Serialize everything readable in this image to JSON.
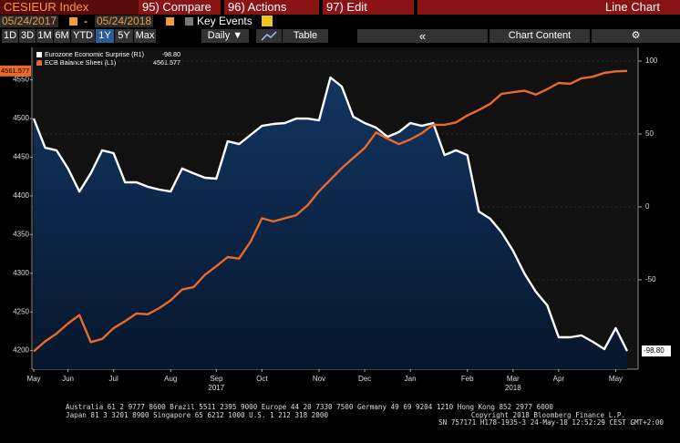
{
  "toolbar": {
    "ticker": "CESIEUR Index",
    "compare": "95) Compare",
    "actions": "96) Actions",
    "edit": "97) Edit",
    "view": "Line Chart",
    "start_date": "05/24/2017",
    "date_separator": "-",
    "end_date": "05/24/2018",
    "key_events": "Key Events",
    "periods": [
      "1D",
      "3D",
      "1M",
      "6M",
      "YTD",
      "1Y",
      "5Y",
      "Max"
    ],
    "selected_period": "1Y",
    "frequency": "Daily",
    "table": "Table",
    "collapse": "«",
    "chart_content": "Chart Content",
    "settings": "⚙"
  },
  "chart_data": {
    "type": "line",
    "categories": [
      "May",
      null,
      null,
      "Jun",
      null,
      null,
      null,
      "Jul",
      null,
      null,
      null,
      null,
      "Aug",
      null,
      null,
      null,
      "Sep",
      null,
      null,
      null,
      "Oct",
      null,
      null,
      null,
      null,
      "Nov",
      null,
      null,
      null,
      "Dec",
      null,
      null,
      null,
      "Jan",
      null,
      null,
      null,
      null,
      "Feb",
      null,
      null,
      null,
      "Mar",
      null,
      null,
      null,
      "Apr",
      null,
      null,
      null,
      null,
      "May",
      null
    ],
    "year_categories": [
      null,
      null,
      null,
      null,
      null,
      null,
      null,
      null,
      null,
      null,
      null,
      null,
      null,
      null,
      null,
      null,
      "2017",
      null,
      null,
      null,
      null,
      null,
      null,
      null,
      null,
      null,
      null,
      null,
      null,
      null,
      null,
      null,
      null,
      null,
      null,
      null,
      null,
      null,
      null,
      null,
      null,
      null,
      "2018",
      null,
      null,
      null,
      null,
      null,
      null,
      null,
      null,
      null,
      null
    ],
    "series": [
      {
        "name": "Eurozone Economic Surprise (R1)",
        "color": "#ffffff",
        "axis": "y2",
        "last_label": "-98.80",
        "values": [
          60.6,
          40.6,
          38.8,
          26.3,
          10.6,
          23.1,
          38.8,
          36.9,
          16.9,
          16.9,
          13.8,
          11.9,
          10.6,
          26.3,
          23.1,
          20,
          19.4,
          45,
          43.1,
          49.4,
          55.6,
          56.9,
          57.5,
          60.6,
          60.6,
          59.4,
          88.8,
          82.5,
          61.9,
          57.5,
          54.4,
          48.1,
          51.3,
          57.5,
          55.6,
          57.5,
          35.6,
          38.8,
          35.6,
          -3.1,
          -8.1,
          -17.5,
          -30,
          -45.6,
          -58.1,
          -67.5,
          -89.4,
          -89.4,
          -88.1,
          -92.5,
          -97.5,
          -83.1,
          -98.8
        ]
      },
      {
        "name": "ECB Balance Sheet (L1)",
        "color": "#ea6a2a",
        "axis": "y",
        "last_label": "4561.577",
        "values": [
          4199,
          4212,
          4222,
          4235,
          4246,
          4211,
          4215,
          4229,
          4238,
          4248,
          4247,
          4255,
          4265,
          4279,
          4282,
          4298,
          4309,
          4321,
          4319,
          4341,
          4371,
          4367,
          4371,
          4375,
          4388,
          4406,
          4421,
          4436,
          4449,
          4462,
          4482,
          4474,
          4467,
          4473,
          4481,
          4492,
          4492,
          4495,
          4504,
          4511,
          4519,
          4532,
          4534,
          4536,
          4531,
          4538,
          4546,
          4545,
          4552,
          4554,
          4559,
          4561,
          4561.577
        ]
      }
    ],
    "ylim": [
      4176,
      4592
    ],
    "yticks": [
      4200,
      4250,
      4300,
      4350,
      4400,
      4450,
      4500,
      4550
    ],
    "y2lim": [
      -111.25,
      109.4
    ],
    "y2ticks": [
      -50,
      0,
      50,
      100
    ],
    "grid": true,
    "legend": "top-left",
    "area_fill": "#0e2a4f"
  },
  "footer": {
    "line1": "Australia 61 2 9777 8600 Brazil 5511 2395 9000 Europe 44 20 7330 7500 Germany 49 69 9204 1210 Hong Kong 852 2977 6000",
    "line2": "Japan 81 3 3201 8900         Singapore 65 6212 1000         U.S. 1 212 318 2000",
    "copyright": "Copyright 2018 Bloomberg Finance L.P.",
    "session": "SN 757171 H178-1935-3 24-May-18 12:52:29 CEST GMT+2:00"
  }
}
